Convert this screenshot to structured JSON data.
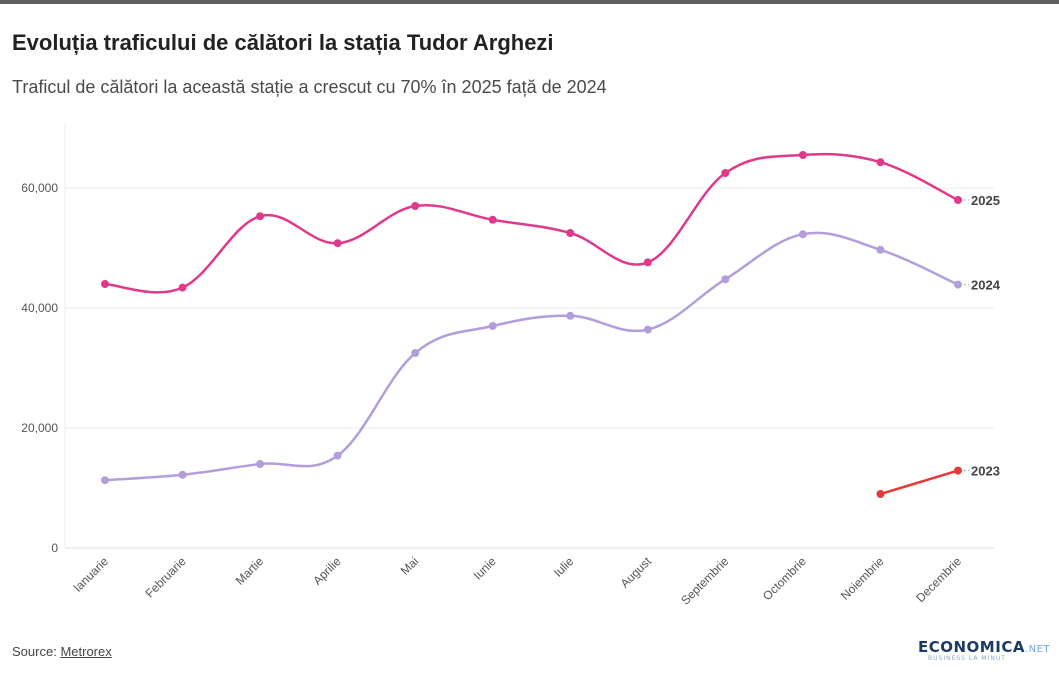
{
  "header": {
    "title": "Evoluția traficului de călători la stația Tudor Arghezi",
    "subtitle": "Traficul de călători la această stație a crescut cu 70% în 2025 față de 2024"
  },
  "footer": {
    "source_label": "Source:",
    "source_link": "Metrorex",
    "logo_text": "ECONOMICA",
    "logo_suffix": ".NET",
    "logo_tagline": "BUSINESS LA MINUT"
  },
  "colors": {
    "series_2025": "#e0388b",
    "series_2024": "#b39ddb",
    "series_2023": "#e53935",
    "grid": "#ececec",
    "axis_text": "#555555"
  },
  "chart_data": {
    "type": "line",
    "title": "Evoluția traficului de călători la stația Tudor Arghezi",
    "subtitle": "Traficul de călători la această stație a crescut cu 70% în 2025 față de 2024",
    "xlabel": "",
    "ylabel": "",
    "categories": [
      "Ianuarie",
      "Februarie",
      "Martie",
      "Aprilie",
      "Mai",
      "Iunie",
      "Iulie",
      "August",
      "Septembrie",
      "Octombrie",
      "Noiembrie",
      "Decembrie"
    ],
    "y_ticks": [
      0,
      20000,
      40000,
      60000
    ],
    "y_tick_labels": [
      "0",
      "20,000",
      "40,000",
      "60,000"
    ],
    "ylim": [
      0,
      70000
    ],
    "grid": true,
    "legend": "inline labels at line ends",
    "series": [
      {
        "name": "2025",
        "color": "#e0388b",
        "values": [
          44000,
          43400,
          55300,
          50800,
          57000,
          54700,
          52500,
          47600,
          62500,
          65500,
          64300,
          58000
        ]
      },
      {
        "name": "2024",
        "color": "#b39ddb",
        "values": [
          11300,
          12200,
          14000,
          15400,
          32500,
          37000,
          38700,
          36400,
          44800,
          52300,
          49700,
          43900
        ]
      },
      {
        "name": "2023",
        "color": "#e53935",
        "values": [
          null,
          null,
          null,
          null,
          null,
          null,
          null,
          null,
          null,
          null,
          9000,
          12900
        ]
      }
    ]
  }
}
